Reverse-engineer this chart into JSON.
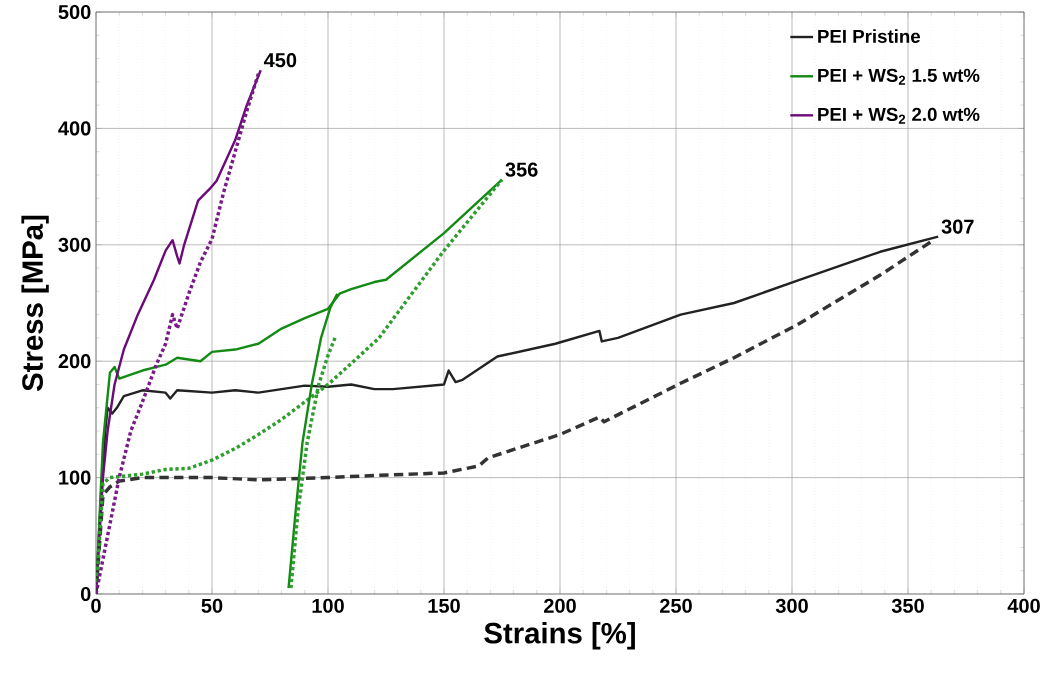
{
  "chart_data": {
    "type": "line",
    "xlabel": "Strains [%]",
    "ylabel": "Stress [MPa]",
    "xlim": [
      0,
      400
    ],
    "ylim": [
      0,
      500
    ],
    "xticks": [
      0,
      50,
      100,
      150,
      200,
      250,
      300,
      350,
      400
    ],
    "yticks": [
      0,
      100,
      200,
      300,
      400,
      500
    ],
    "grid": true,
    "legend": "top right",
    "marker": "none",
    "series": [
      {
        "name": "PEI  Pristine",
        "color": "#222222",
        "line_style": "solid",
        "x": [
          0,
          2,
          4,
          5,
          7,
          9,
          12,
          20,
          30,
          32,
          35,
          50,
          60,
          70,
          80,
          90,
          100,
          110,
          120,
          128,
          150,
          152,
          155,
          158,
          173,
          198,
          217,
          218,
          225,
          252,
          275,
          302,
          338,
          363
        ],
        "values": [
          0,
          80,
          140,
          160,
          155,
          160,
          170,
          175,
          173,
          168,
          175,
          173,
          175,
          173,
          176,
          179,
          178,
          180,
          176,
          176,
          180,
          192,
          182,
          184,
          204,
          215,
          226,
          217,
          220,
          240,
          250,
          269,
          294,
          307
        ]
      },
      {
        "name": "PEI + WS$_{2}$ 1.5 wt%",
        "color": "#138a13",
        "line_style": "solid",
        "x": [
          0,
          3,
          6,
          8,
          10,
          20,
          30,
          35,
          45,
          50,
          60,
          70,
          80,
          90,
          100,
          105,
          110,
          120,
          125,
          150,
          175
        ],
        "values": [
          0,
          130,
          190,
          195,
          185,
          192,
          197,
          203,
          200,
          208,
          210,
          215,
          228,
          237,
          245,
          258,
          262,
          268,
          270,
          310,
          356
        ]
      },
      {
        "name": "PEI + WS$_{2}$ 2.0 wt%",
        "color": "#6b0a78",
        "line_style": "solid",
        "x": [
          0,
          3,
          5,
          8,
          12,
          18,
          25,
          30,
          33,
          35,
          36,
          38,
          44,
          49,
          52,
          60,
          65,
          71
        ],
        "values": [
          0,
          100,
          140,
          180,
          210,
          240,
          270,
          295,
          304,
          290,
          284,
          300,
          338,
          348,
          355,
          390,
          420,
          450
        ]
      },
      {
        "color": "#333333",
        "line_style": "dashed",
        "x": [
          0,
          3,
          6,
          10,
          20,
          50,
          70,
          100,
          122,
          150,
          165,
          169,
          200,
          217,
          219,
          252,
          275,
          302,
          338,
          361
        ],
        "values": [
          0,
          85,
          92,
          97,
          100,
          100,
          98,
          100,
          102,
          104,
          110,
          117,
          137,
          152,
          148,
          181,
          203,
          231,
          274,
          304
        ]
      },
      {
        "color": "#2e9e2e",
        "line_style": "dotted",
        "x": [
          0,
          3,
          6,
          20,
          30,
          40,
          50,
          60,
          70,
          80,
          90,
          100,
          110,
          122,
          135,
          150,
          175
        ],
        "values": [
          0,
          95,
          100,
          103,
          107,
          108,
          115,
          125,
          137,
          150,
          165,
          180,
          198,
          220,
          255,
          295,
          356
        ]
      },
      {
        "color": "#138a13",
        "line_style": "solid",
        "x": [
          83,
          86,
          89,
          93,
          97,
          101,
          104
        ],
        "values": [
          5,
          70,
          130,
          180,
          220,
          246,
          258
        ]
      },
      {
        "color": "#2e9e2e",
        "line_style": "dotted",
        "x": [
          84,
          87,
          91,
          96,
          100,
          103
        ],
        "values": [
          5,
          70,
          130,
          180,
          205,
          220
        ]
      },
      {
        "color": "#7a1a88",
        "line_style": "dotted",
        "x": [
          0,
          5,
          10,
          15,
          20,
          26,
          30,
          33,
          35,
          40,
          45,
          50,
          55,
          60,
          65,
          70
        ],
        "values": [
          0,
          50,
          100,
          140,
          165,
          197,
          215,
          240,
          228,
          258,
          285,
          305,
          345,
          380,
          415,
          447
        ]
      }
    ],
    "annotations": [
      {
        "text": "450",
        "x": 71,
        "y": 450
      },
      {
        "text": "356",
        "x": 175,
        "y": 356
      },
      {
        "text": "307",
        "x": 363,
        "y": 307
      }
    ]
  }
}
